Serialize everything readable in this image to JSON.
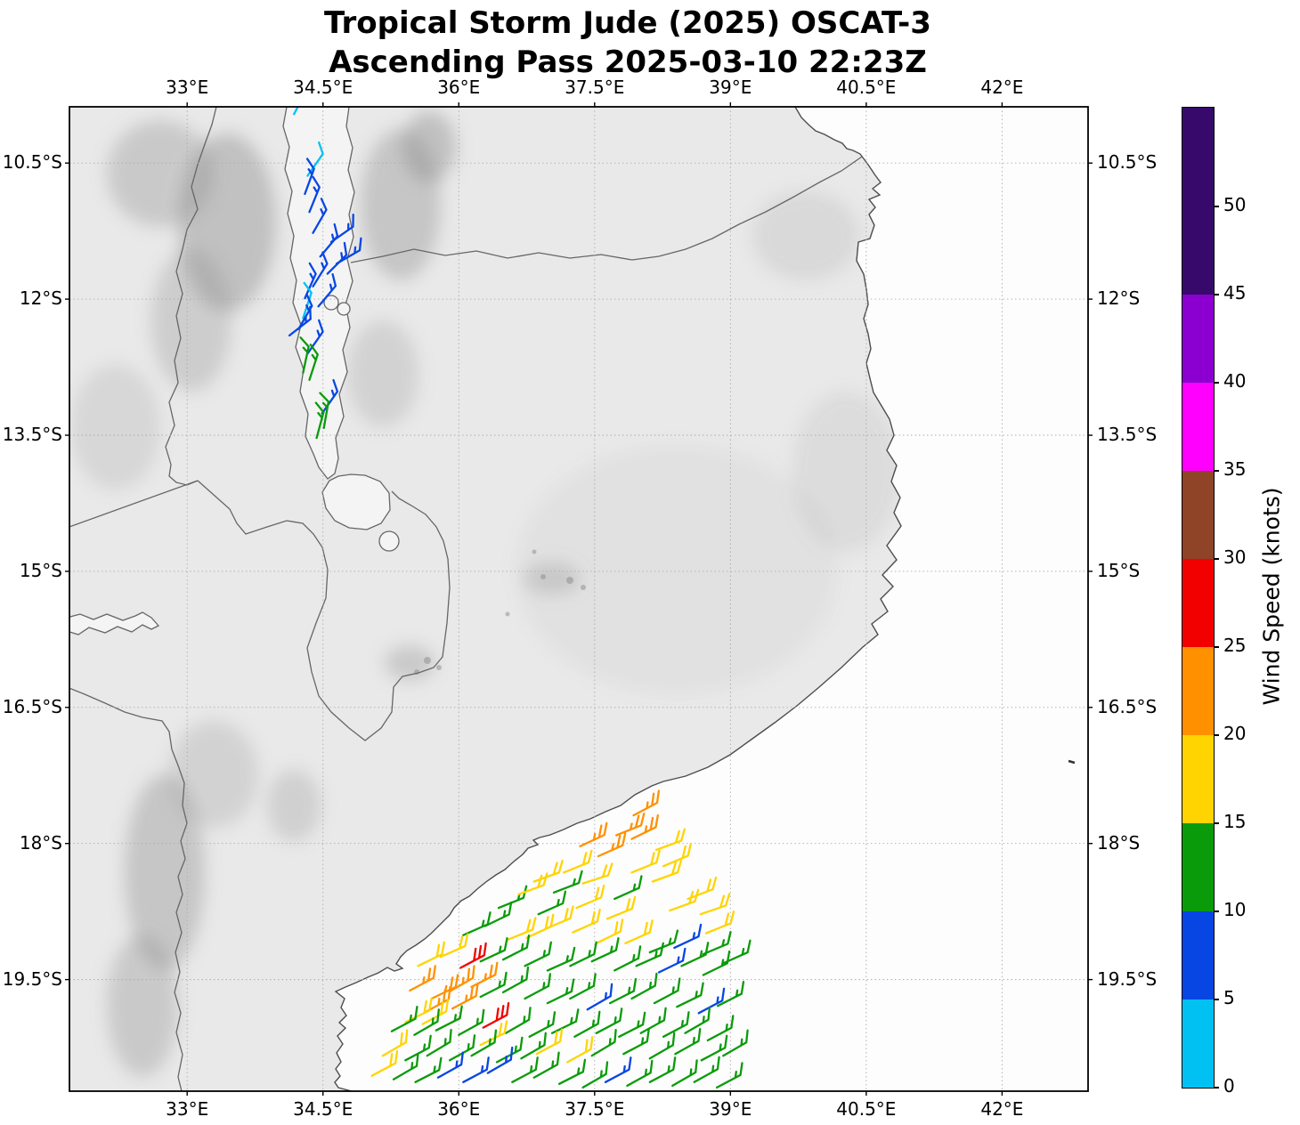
{
  "title": {
    "line1": "Tropical Storm Jude (2025) OSCAT-3",
    "line2": "Ascending Pass 2025-03-10 22:23Z"
  },
  "axes": {
    "extent": {
      "lon_min": 31.7,
      "lon_max": 42.95,
      "lat_min": -20.73,
      "lat_max": -9.88
    },
    "lon_ticks": [
      {
        "label": "33°E",
        "lon": 33
      },
      {
        "label": "34.5°E",
        "lon": 34.5
      },
      {
        "label": "36°E",
        "lon": 36
      },
      {
        "label": "37.5°E",
        "lon": 37.5
      },
      {
        "label": "39°E",
        "lon": 39
      },
      {
        "label": "40.5°E",
        "lon": 40.5
      },
      {
        "label": "42°E",
        "lon": 42
      }
    ],
    "lat_ticks": [
      {
        "label": "10.5°S",
        "lat": -10.5
      },
      {
        "label": "12°S",
        "lat": -12
      },
      {
        "label": "13.5°S",
        "lat": -13.5
      },
      {
        "label": "15°S",
        "lat": -15
      },
      {
        "label": "16.5°S",
        "lat": -16.5
      },
      {
        "label": "18°S",
        "lat": -18
      },
      {
        "label": "19.5°S",
        "lat": -19.5
      }
    ]
  },
  "colorbar": {
    "label": "Wind Speed (knots)",
    "bounds": [
      0,
      5,
      10,
      15,
      20,
      25,
      30,
      35,
      40,
      45,
      50
    ],
    "tick_labels": [
      "0",
      "5",
      "10",
      "15",
      "20",
      "25",
      "30",
      "35",
      "40",
      "45",
      "50"
    ],
    "colors_low_to_high": [
      "#636363",
      "#00c1f2",
      "#0846e4",
      "#0a9b0a",
      "#ffd400",
      "#ff9100",
      "#f20000",
      "#8f4428",
      "#ff00ff",
      "#8b00d0",
      "#36096b"
    ],
    "over_color": "#36096b"
  },
  "chart_data": {
    "type": "wind_barb_map",
    "description": "OSCAT-3 scatterometer wind barbs (knots) colored by speed bin",
    "speed_bins_knots": [
      0,
      5,
      10,
      15,
      20,
      25,
      30,
      35,
      40,
      45,
      50
    ],
    "barbs_format": [
      "lon_deg_E",
      "lat_deg_N",
      "speed_knots",
      "staff_angle_deg"
    ],
    "barbs": [
      [
        34.18,
        -9.96,
        8,
        -62
      ],
      [
        34.33,
        -10.64,
        8,
        -55
      ],
      [
        34.3,
        -10.84,
        13,
        -70
      ],
      [
        34.35,
        -11.04,
        13,
        -68
      ],
      [
        34.39,
        -11.27,
        13,
        -60
      ],
      [
        34.59,
        -11.37,
        13,
        -35
      ],
      [
        34.47,
        -11.53,
        13,
        -50
      ],
      [
        34.65,
        -11.61,
        13,
        -30
      ],
      [
        34.55,
        -11.72,
        13,
        -45
      ],
      [
        34.39,
        -11.86,
        13,
        -58
      ],
      [
        34.3,
        -11.99,
        13,
        -66
      ],
      [
        34.45,
        -12.08,
        13,
        -50
      ],
      [
        34.28,
        -12.21,
        8,
        -72
      ],
      [
        34.23,
        -12.33,
        13,
        -60
      ],
      [
        34.13,
        -12.4,
        13,
        -38
      ],
      [
        34.33,
        -12.6,
        13,
        -55
      ],
      [
        34.28,
        -12.81,
        17,
        -78
      ],
      [
        34.35,
        -12.89,
        17,
        -72
      ],
      [
        34.49,
        -13.26,
        13,
        -55
      ],
      [
        34.51,
        -13.42,
        17,
        -80
      ],
      [
        34.43,
        -13.53,
        17,
        -75
      ],
      [
        37.34,
        -18.03,
        27,
        -25
      ],
      [
        37.74,
        -17.91,
        27,
        -22
      ],
      [
        37.93,
        -17.69,
        27,
        -28
      ],
      [
        37.54,
        -18.14,
        27,
        -24
      ],
      [
        37.91,
        -17.95,
        27,
        -26
      ],
      [
        38.18,
        -18.07,
        22,
        -20
      ],
      [
        36.83,
        -18.42,
        22,
        -20
      ],
      [
        37.16,
        -18.32,
        22,
        -22
      ],
      [
        37.37,
        -18.44,
        22,
        -18
      ],
      [
        37.72,
        -18.61,
        17,
        -24
      ],
      [
        37.91,
        -18.32,
        22,
        -22
      ],
      [
        38.14,
        -18.42,
        22,
        -20
      ],
      [
        38.26,
        -18.25,
        22,
        -23
      ],
      [
        38.53,
        -18.61,
        22,
        -21
      ],
      [
        38.67,
        -18.78,
        22,
        -19
      ],
      [
        36.44,
        -18.71,
        17,
        -22
      ],
      [
        36.66,
        -18.56,
        22,
        -20
      ],
      [
        36.88,
        -18.78,
        17,
        -24
      ],
      [
        37.05,
        -18.54,
        17,
        -21
      ],
      [
        37.3,
        -18.71,
        22,
        -23
      ],
      [
        37.64,
        -18.83,
        22,
        -22
      ],
      [
        38.33,
        -18.74,
        22,
        -20
      ],
      [
        38.73,
        -18.99,
        22,
        -22
      ],
      [
        36.05,
        -19.01,
        17,
        -24
      ],
      [
        36.29,
        -18.91,
        17,
        -26
      ],
      [
        36.54,
        -19.06,
        22,
        -22
      ],
      [
        36.75,
        -19.04,
        22,
        -25
      ],
      [
        36.96,
        -18.94,
        22,
        -23
      ],
      [
        37.26,
        -18.98,
        22,
        -24
      ],
      [
        37.52,
        -19.1,
        22,
        -26
      ],
      [
        37.84,
        -19.1,
        22,
        -24
      ],
      [
        38.11,
        -19.2,
        17,
        -22
      ],
      [
        38.38,
        -19.15,
        13,
        -25
      ],
      [
        38.7,
        -19.22,
        17,
        -23
      ],
      [
        35.55,
        -19.35,
        22,
        -26
      ],
      [
        35.8,
        -19.25,
        22,
        -24
      ],
      [
        36.02,
        -19.37,
        32,
        -28
      ],
      [
        36.24,
        -19.3,
        17,
        -25
      ],
      [
        36.49,
        -19.28,
        17,
        -27
      ],
      [
        36.73,
        -19.35,
        17,
        -26
      ],
      [
        36.98,
        -19.4,
        17,
        -24
      ],
      [
        37.23,
        -19.35,
        17,
        -26
      ],
      [
        37.47,
        -19.3,
        17,
        -25
      ],
      [
        37.72,
        -19.4,
        17,
        -27
      ],
      [
        37.96,
        -19.35,
        17,
        -24
      ],
      [
        38.21,
        -19.42,
        13,
        -26
      ],
      [
        38.46,
        -19.35,
        17,
        -25
      ],
      [
        38.7,
        -19.45,
        17,
        -26
      ],
      [
        38.92,
        -19.32,
        17,
        -24
      ],
      [
        35.46,
        -19.62,
        27,
        -28
      ],
      [
        35.7,
        -19.71,
        27,
        -26
      ],
      [
        35.9,
        -19.63,
        27,
        -30
      ],
      [
        36.14,
        -19.58,
        27,
        -27
      ],
      [
        35.63,
        -19.86,
        27,
        -29
      ],
      [
        35.93,
        -19.82,
        27,
        -28
      ],
      [
        35.41,
        -19.97,
        22,
        -26
      ],
      [
        35.6,
        -19.99,
        22,
        -28
      ],
      [
        36.24,
        -19.69,
        17,
        -27
      ],
      [
        36.49,
        -19.64,
        17,
        -29
      ],
      [
        36.73,
        -19.71,
        17,
        -28
      ],
      [
        36.98,
        -19.76,
        17,
        -26
      ],
      [
        37.23,
        -19.71,
        17,
        -28
      ],
      [
        37.42,
        -19.83,
        13,
        -30
      ],
      [
        37.67,
        -19.76,
        17,
        -27
      ],
      [
        37.91,
        -19.71,
        17,
        -29
      ],
      [
        38.16,
        -19.76,
        17,
        -28
      ],
      [
        38.41,
        -19.8,
        17,
        -26
      ],
      [
        38.65,
        -19.87,
        13,
        -28
      ],
      [
        38.86,
        -19.79,
        17,
        -27
      ],
      [
        35.26,
        -20.07,
        17,
        -28
      ],
      [
        35.51,
        -20.11,
        17,
        -30
      ],
      [
        35.75,
        -20.06,
        17,
        -27
      ],
      [
        36.0,
        -20.11,
        17,
        -29
      ],
      [
        36.27,
        -20.03,
        32,
        -28
      ],
      [
        36.52,
        -20.09,
        17,
        -30
      ],
      [
        36.78,
        -20.13,
        17,
        -28
      ],
      [
        37.03,
        -20.09,
        17,
        -26
      ],
      [
        37.28,
        -20.13,
        17,
        -29
      ],
      [
        37.52,
        -20.09,
        17,
        -28
      ],
      [
        37.77,
        -20.13,
        17,
        -27
      ],
      [
        38.01,
        -20.09,
        17,
        -29
      ],
      [
        38.26,
        -20.13,
        17,
        -28
      ],
      [
        38.5,
        -20.09,
        17,
        -30
      ],
      [
        38.75,
        -20.17,
        17,
        -28
      ],
      [
        36.24,
        -20.22,
        22,
        -26
      ],
      [
        36.86,
        -20.32,
        22,
        -28
      ],
      [
        35.16,
        -20.34,
        22,
        -30
      ],
      [
        35.41,
        -20.39,
        17,
        -28
      ],
      [
        35.65,
        -20.34,
        17,
        -31
      ],
      [
        35.9,
        -20.39,
        17,
        -29
      ],
      [
        36.14,
        -20.34,
        17,
        -30
      ],
      [
        36.42,
        -20.41,
        17,
        -28
      ],
      [
        36.69,
        -20.37,
        17,
        -30
      ],
      [
        37.2,
        -20.41,
        22,
        -29
      ],
      [
        37.47,
        -20.34,
        17,
        -31
      ],
      [
        37.82,
        -20.32,
        17,
        -28
      ],
      [
        38.11,
        -20.37,
        17,
        -30
      ],
      [
        38.39,
        -20.32,
        17,
        -29
      ],
      [
        38.68,
        -20.39,
        17,
        -28
      ],
      [
        38.92,
        -20.34,
        17,
        -30
      ],
      [
        35.04,
        -20.56,
        22,
        -28
      ],
      [
        35.28,
        -20.6,
        17,
        -30
      ],
      [
        35.52,
        -20.63,
        17,
        -27
      ],
      [
        35.77,
        -20.58,
        13,
        -29
      ],
      [
        36.05,
        -20.63,
        13,
        -28
      ],
      [
        36.32,
        -20.53,
        13,
        -30
      ],
      [
        36.59,
        -20.63,
        17,
        -28
      ],
      [
        36.83,
        -20.58,
        17,
        -29
      ],
      [
        37.11,
        -20.65,
        17,
        -27
      ],
      [
        37.37,
        -20.69,
        17,
        -30
      ],
      [
        37.62,
        -20.63,
        13,
        -28
      ],
      [
        37.86,
        -20.67,
        17,
        -29
      ],
      [
        38.11,
        -20.63,
        17,
        -28
      ],
      [
        38.36,
        -20.67,
        17,
        -30
      ],
      [
        38.6,
        -20.63,
        17,
        -29
      ],
      [
        38.85,
        -20.69,
        17,
        -28
      ]
    ]
  }
}
